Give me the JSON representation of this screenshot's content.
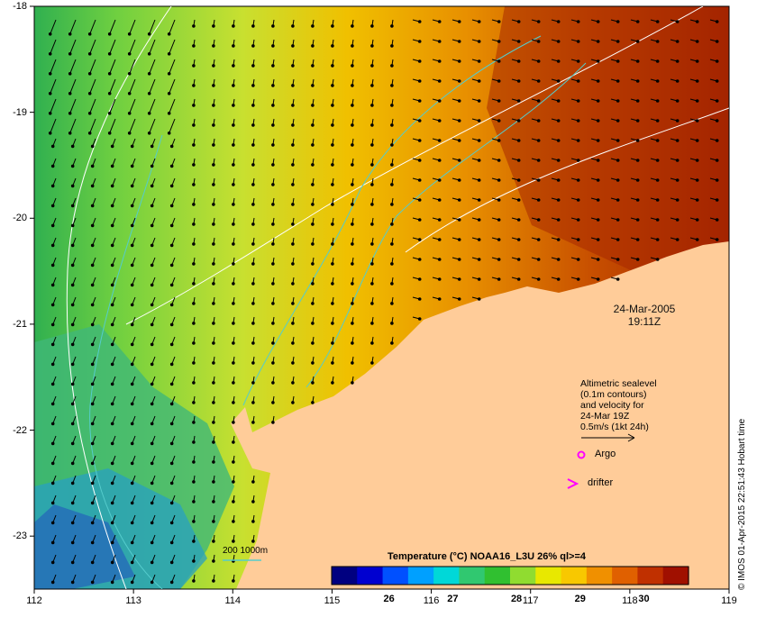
{
  "map": {
    "lon_ticks": [
      "112",
      "113",
      "114",
      "115",
      "116",
      "117",
      "118",
      "119"
    ],
    "lat_ticks": [
      "-18",
      "-19",
      "-20",
      "-21",
      "-22",
      "-23"
    ],
    "lon_range": [
      112,
      119
    ],
    "lat_range": [
      -23.5,
      -18
    ],
    "land_color": "#ffcc99",
    "contour_color": "#55cccc"
  },
  "date_label": {
    "date": "24-Mar-2005",
    "time": "19:11Z"
  },
  "legend": {
    "lines": [
      "Altimetric sealevel",
      "(0.1m contours)",
      "and velocity for",
      "24-Mar 19Z",
      "0.5m/s (1kt 24h)"
    ],
    "argo_label": "Argo",
    "drifter_label": "drifter",
    "argo_color": "#ff00ff",
    "drifter_color": "#ff00ff"
  },
  "isobath_label": "200  1000m",
  "colorbar": {
    "title": "Temperature (°C) NOAA16_L3U 26% ql>=4",
    "ticks": [
      "26",
      "27",
      "28",
      "29",
      "30"
    ],
    "tick_values": [
      26,
      27,
      28,
      29,
      30
    ],
    "range": [
      25.1,
      30.7
    ],
    "colors": [
      "#000080",
      "#0000d0",
      "#0050ff",
      "#00a0ff",
      "#00d8d8",
      "#30c870",
      "#30c030",
      "#90dc30",
      "#e8e800",
      "#f8c800",
      "#f09000",
      "#e06000",
      "#c03000",
      "#a01000"
    ]
  },
  "credit": "© IMOS 01-Apr-2015 22:51:43 Hobart time"
}
